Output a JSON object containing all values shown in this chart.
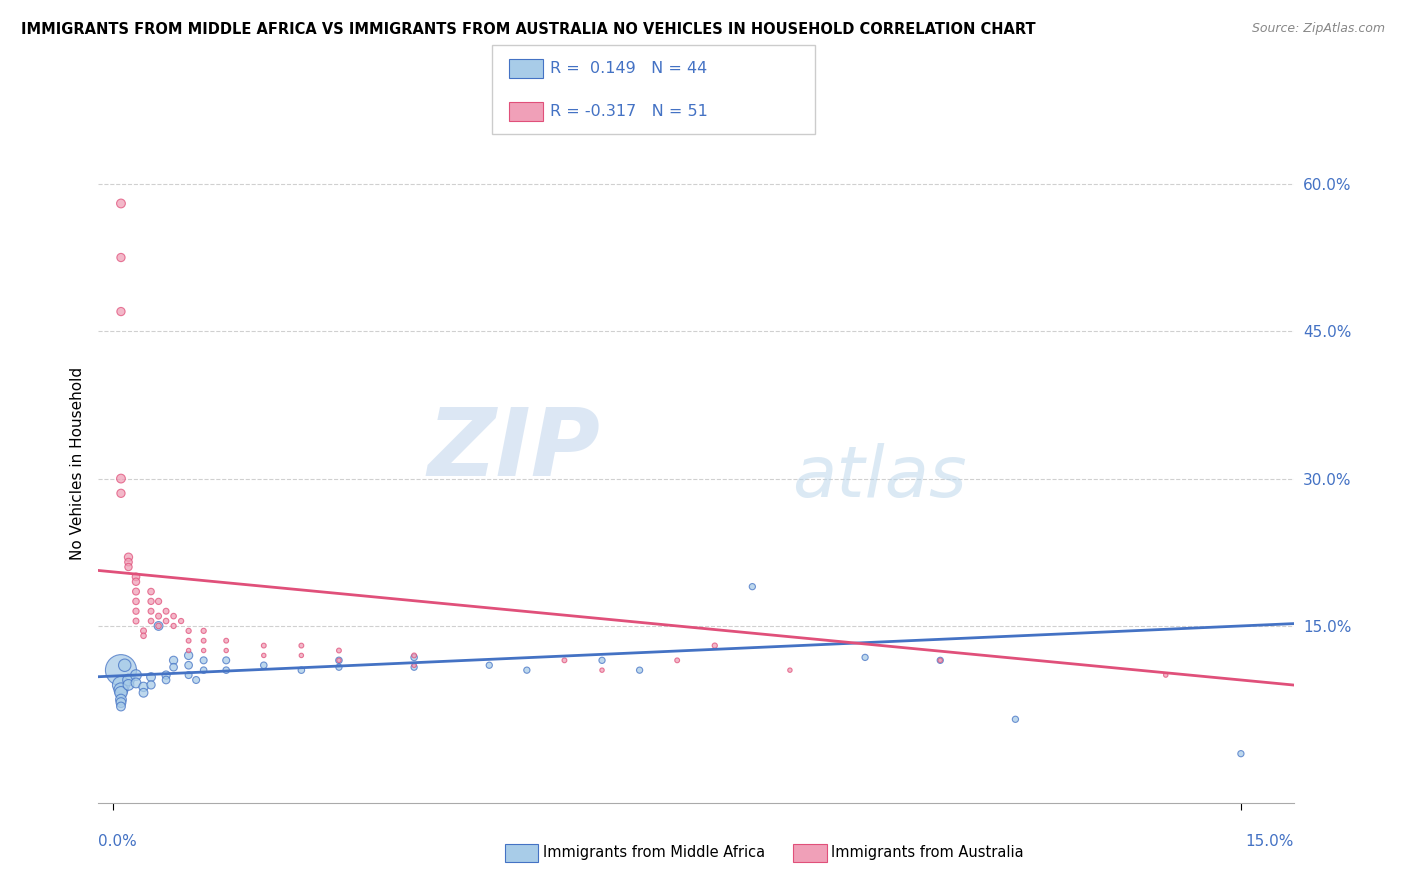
{
  "title": "IMMIGRANTS FROM MIDDLE AFRICA VS IMMIGRANTS FROM AUSTRALIA NO VEHICLES IN HOUSEHOLD CORRELATION CHART",
  "source": "Source: ZipAtlas.com",
  "ylabel": "No Vehicles in Household",
  "y_ticks": [
    0.0,
    0.15,
    0.3,
    0.45,
    0.6
  ],
  "y_tick_labels": [
    "",
    "15.0%",
    "30.0%",
    "45.0%",
    "60.0%"
  ],
  "xlim": [
    -0.002,
    0.157
  ],
  "ylim": [
    -0.03,
    0.66
  ],
  "blue_color": "#A8CCE8",
  "pink_color": "#F0A0B8",
  "blue_line_color": "#4472C4",
  "pink_line_color": "#E0507A",
  "legend_r_blue": "R =  0.149",
  "legend_n_blue": "N = 44",
  "legend_r_pink": "R = -0.317",
  "legend_n_pink": "N = 51",
  "label_blue": "Immigrants from Middle Africa",
  "label_pink": "Immigrants from Australia",
  "watermark_zip": "ZIP",
  "watermark_atlas": "atlas",
  "blue_trend": [
    0.099,
    0.15
  ],
  "pink_trend": [
    0.205,
    0.095
  ],
  "blue_points": [
    [
      0.001,
      0.105
    ],
    [
      0.001,
      0.09
    ],
    [
      0.001,
      0.085
    ],
    [
      0.001,
      0.082
    ],
    [
      0.001,
      0.075
    ],
    [
      0.001,
      0.072
    ],
    [
      0.001,
      0.068
    ],
    [
      0.0015,
      0.11
    ],
    [
      0.002,
      0.095
    ],
    [
      0.002,
      0.09
    ],
    [
      0.003,
      0.1
    ],
    [
      0.003,
      0.092
    ],
    [
      0.004,
      0.088
    ],
    [
      0.004,
      0.082
    ],
    [
      0.005,
      0.098
    ],
    [
      0.005,
      0.09
    ],
    [
      0.006,
      0.15
    ],
    [
      0.007,
      0.1
    ],
    [
      0.007,
      0.095
    ],
    [
      0.008,
      0.115
    ],
    [
      0.008,
      0.108
    ],
    [
      0.01,
      0.12
    ],
    [
      0.01,
      0.11
    ],
    [
      0.01,
      0.1
    ],
    [
      0.011,
      0.095
    ],
    [
      0.012,
      0.115
    ],
    [
      0.012,
      0.105
    ],
    [
      0.015,
      0.115
    ],
    [
      0.015,
      0.105
    ],
    [
      0.02,
      0.11
    ],
    [
      0.025,
      0.105
    ],
    [
      0.03,
      0.115
    ],
    [
      0.03,
      0.108
    ],
    [
      0.04,
      0.118
    ],
    [
      0.04,
      0.108
    ],
    [
      0.05,
      0.11
    ],
    [
      0.055,
      0.105
    ],
    [
      0.065,
      0.115
    ],
    [
      0.07,
      0.105
    ],
    [
      0.085,
      0.19
    ],
    [
      0.1,
      0.118
    ],
    [
      0.11,
      0.115
    ],
    [
      0.12,
      0.055
    ],
    [
      0.15,
      0.02
    ]
  ],
  "blue_sizes": [
    500,
    150,
    100,
    80,
    60,
    50,
    40,
    80,
    70,
    60,
    60,
    50,
    45,
    40,
    40,
    35,
    40,
    35,
    30,
    35,
    30,
    35,
    30,
    25,
    25,
    25,
    22,
    25,
    22,
    22,
    22,
    22,
    20,
    22,
    20,
    20,
    20,
    20,
    20,
    20,
    20,
    20,
    20,
    20
  ],
  "pink_points": [
    [
      0.001,
      0.58
    ],
    [
      0.001,
      0.525
    ],
    [
      0.001,
      0.47
    ],
    [
      0.001,
      0.3
    ],
    [
      0.001,
      0.285
    ],
    [
      0.002,
      0.22
    ],
    [
      0.002,
      0.215
    ],
    [
      0.002,
      0.21
    ],
    [
      0.003,
      0.2
    ],
    [
      0.003,
      0.195
    ],
    [
      0.003,
      0.185
    ],
    [
      0.003,
      0.175
    ],
    [
      0.003,
      0.165
    ],
    [
      0.003,
      0.155
    ],
    [
      0.004,
      0.145
    ],
    [
      0.004,
      0.14
    ],
    [
      0.005,
      0.185
    ],
    [
      0.005,
      0.175
    ],
    [
      0.005,
      0.165
    ],
    [
      0.005,
      0.155
    ],
    [
      0.006,
      0.175
    ],
    [
      0.006,
      0.16
    ],
    [
      0.006,
      0.15
    ],
    [
      0.007,
      0.165
    ],
    [
      0.007,
      0.155
    ],
    [
      0.008,
      0.16
    ],
    [
      0.008,
      0.15
    ],
    [
      0.009,
      0.155
    ],
    [
      0.01,
      0.145
    ],
    [
      0.01,
      0.135
    ],
    [
      0.01,
      0.125
    ],
    [
      0.012,
      0.145
    ],
    [
      0.012,
      0.135
    ],
    [
      0.012,
      0.125
    ],
    [
      0.015,
      0.135
    ],
    [
      0.015,
      0.125
    ],
    [
      0.02,
      0.13
    ],
    [
      0.02,
      0.12
    ],
    [
      0.025,
      0.13
    ],
    [
      0.025,
      0.12
    ],
    [
      0.03,
      0.125
    ],
    [
      0.03,
      0.115
    ],
    [
      0.04,
      0.12
    ],
    [
      0.04,
      0.11
    ],
    [
      0.06,
      0.115
    ],
    [
      0.065,
      0.105
    ],
    [
      0.075,
      0.115
    ],
    [
      0.08,
      0.13
    ],
    [
      0.09,
      0.105
    ],
    [
      0.11,
      0.115
    ],
    [
      0.14,
      0.1
    ]
  ],
  "pink_sizes": [
    40,
    35,
    35,
    40,
    35,
    35,
    30,
    28,
    30,
    28,
    25,
    22,
    20,
    18,
    18,
    16,
    22,
    20,
    18,
    16,
    20,
    18,
    16,
    18,
    16,
    16,
    14,
    14,
    14,
    12,
    10,
    14,
    12,
    10,
    12,
    10,
    12,
    10,
    12,
    10,
    12,
    10,
    12,
    10,
    12,
    10,
    12,
    14,
    10,
    10,
    10
  ]
}
